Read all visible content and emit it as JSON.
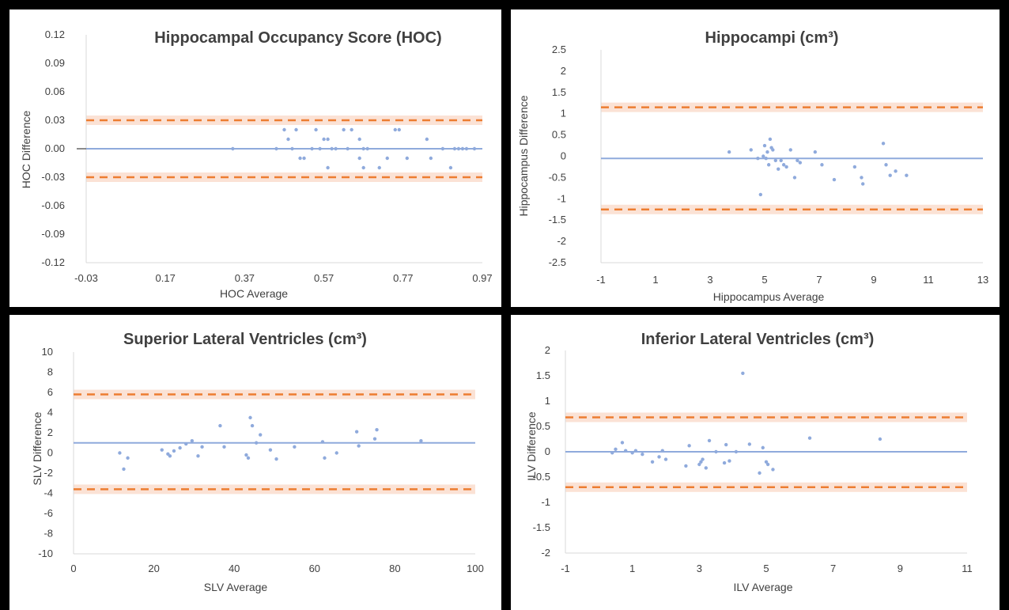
{
  "chart_data": [
    {
      "type": "scatter",
      "title": "Hippocampal Occupancy Score (HOC)",
      "xlabel": "HOC  Average",
      "ylabel": "HOC  Difference",
      "xlim": [
        -0.03,
        0.97
      ],
      "ylim": [
        -0.12,
        0.12
      ],
      "xticks": [
        "-0.03",
        "0.17",
        "0.37",
        "0.57",
        "0.77",
        "0.97"
      ],
      "yticks": [
        "0.12",
        "0.09",
        "0.06",
        "0.03",
        "0.00",
        "-0.03",
        "-0.06",
        "-0.09",
        "-0.12"
      ],
      "mean_difference": 0.0,
      "limits_of_agreement": [
        0.03,
        -0.03
      ],
      "series": [
        {
          "x": [
            0.34,
            0.45,
            0.47,
            0.48,
            0.49,
            0.5,
            0.51,
            0.52,
            0.54,
            0.55,
            0.56,
            0.57,
            0.58,
            0.58,
            0.59,
            0.6,
            0.62,
            0.63,
            0.64,
            0.66,
            0.66,
            0.67,
            0.67,
            0.68,
            0.71,
            0.73,
            0.75,
            0.76,
            0.78,
            0.83,
            0.84,
            0.87,
            0.89,
            0.9,
            0.91,
            0.92,
            0.93,
            0.95
          ],
          "y": [
            0.0,
            0.0,
            0.02,
            0.01,
            0.0,
            0.02,
            -0.01,
            -0.01,
            0.0,
            0.02,
            0.0,
            0.01,
            0.01,
            -0.02,
            0.0,
            0.0,
            0.02,
            0.0,
            0.02,
            0.01,
            -0.01,
            0.0,
            -0.02,
            0.0,
            -0.02,
            -0.01,
            0.02,
            0.02,
            -0.01,
            0.01,
            -0.01,
            0.0,
            -0.02,
            0.0,
            0.0,
            0.0,
            0.0,
            0.0
          ]
        }
      ],
      "colors": {
        "mean": "#8faadc",
        "loa": "#ed7d31",
        "loa_band": "#fbe2d5",
        "points": "#8faadc"
      }
    },
    {
      "type": "scatter",
      "title": "Hippocampi (cm³)",
      "xlabel": "Hippocampus  Average",
      "ylabel": "Hippocampus  Difference",
      "xlim": [
        -1,
        13
      ],
      "ylim": [
        -2.5,
        2.5
      ],
      "xticks": [
        "-1",
        "1",
        "3",
        "5",
        "7",
        "9",
        "11",
        "13"
      ],
      "yticks": [
        "2.5",
        "2",
        "1.5",
        "1",
        "0.5",
        "0",
        "-0.5",
        "-1",
        "-1.5",
        "-2",
        "-2.5"
      ],
      "mean_difference": -0.05,
      "limits_of_agreement": [
        1.15,
        -1.25
      ],
      "series": [
        {
          "x": [
            3.7,
            4.5,
            4.75,
            4.85,
            4.95,
            5.0,
            5.05,
            5.1,
            5.15,
            5.2,
            5.25,
            5.3,
            5.4,
            5.5,
            5.6,
            5.7,
            5.8,
            5.95,
            6.1,
            6.2,
            6.3,
            6.85,
            7.1,
            7.55,
            8.3,
            8.55,
            8.6,
            9.35,
            9.45,
            9.6,
            9.8,
            10.2
          ],
          "y": [
            0.1,
            0.15,
            -0.05,
            -0.9,
            0.0,
            0.25,
            -0.05,
            0.1,
            -0.2,
            0.4,
            0.2,
            0.15,
            -0.1,
            -0.3,
            -0.1,
            -0.2,
            -0.25,
            0.15,
            -0.5,
            -0.1,
            -0.15,
            0.1,
            -0.2,
            -0.55,
            -0.25,
            -0.5,
            -0.65,
            0.3,
            -0.2,
            -0.45,
            -0.35,
            -0.45
          ]
        }
      ],
      "colors": {
        "mean": "#8faadc",
        "loa": "#ed7d31",
        "loa_band": "#fbe2d5",
        "points": "#8faadc"
      }
    },
    {
      "type": "scatter",
      "title": "Superior Lateral Ventricles (cm³)",
      "xlabel": "SLV Average",
      "ylabel": "SLV Difference",
      "xlim": [
        0,
        100
      ],
      "ylim": [
        -10,
        10
      ],
      "xticks": [
        "0",
        "20",
        "40",
        "60",
        "80",
        "100"
      ],
      "yticks": [
        "10",
        "8",
        "6",
        "4",
        "2",
        "0",
        "-2",
        "-4",
        "-6",
        "-8",
        "-10"
      ],
      "mean_difference": 1.0,
      "limits_of_agreement": [
        5.8,
        -3.6
      ],
      "series": [
        {
          "x": [
            11.5,
            12.5,
            13.5,
            22.0,
            23.5,
            24.0,
            25.0,
            26.5,
            28.0,
            29.5,
            31.0,
            32.0,
            36.5,
            37.5,
            43.0,
            43.5,
            44.0,
            44.5,
            45.5,
            46.5,
            49.0,
            50.5,
            55.0,
            62.0,
            62.5,
            65.5,
            70.5,
            71.0,
            75.0,
            75.5,
            86.5
          ],
          "y": [
            0.0,
            -1.6,
            -0.5,
            0.3,
            -0.1,
            -0.3,
            0.2,
            0.5,
            0.9,
            1.2,
            -0.3,
            0.6,
            2.7,
            0.6,
            -0.2,
            -0.5,
            3.5,
            2.7,
            1.0,
            1.8,
            0.3,
            -0.6,
            0.6,
            1.1,
            -0.5,
            0.0,
            2.1,
            0.7,
            1.4,
            2.3,
            1.2
          ]
        }
      ],
      "colors": {
        "mean": "#8faadc",
        "loa": "#ed7d31",
        "loa_band": "#fbe2d5",
        "points": "#8faadc"
      }
    },
    {
      "type": "scatter",
      "title": "Inferior Lateral Ventricles (cm³)",
      "xlabel": "ILV Average",
      "ylabel": "ILV Difference",
      "xlim": [
        -1,
        11
      ],
      "ylim": [
        -2,
        2
      ],
      "xticks": [
        "-1",
        "1",
        "3",
        "5",
        "7",
        "9",
        "11"
      ],
      "yticks": [
        "2",
        "1.5",
        "1",
        "0.5",
        "0",
        "-0.5",
        "-1",
        "-1.5",
        "-2"
      ],
      "mean_difference": 0.0,
      "limits_of_agreement": [
        0.68,
        -0.7
      ],
      "series": [
        {
          "x": [
            0.4,
            0.5,
            0.7,
            0.8,
            1.0,
            1.1,
            1.3,
            1.6,
            1.8,
            1.9,
            2.0,
            2.6,
            2.7,
            3.0,
            3.05,
            3.1,
            3.2,
            3.3,
            3.5,
            3.75,
            3.8,
            3.9,
            4.1,
            4.3,
            4.5,
            4.8,
            4.9,
            5.0,
            5.05,
            5.2,
            6.3,
            8.4
          ],
          "y": [
            -0.02,
            0.05,
            0.18,
            0.02,
            -0.02,
            0.02,
            -0.05,
            -0.2,
            -0.1,
            0.02,
            -0.15,
            -0.28,
            0.12,
            -0.25,
            -0.2,
            -0.15,
            -0.32,
            0.22,
            0.0,
            -0.22,
            0.14,
            -0.18,
            0.0,
            1.55,
            0.15,
            -0.42,
            0.08,
            -0.2,
            -0.25,
            -0.35,
            0.27,
            0.25
          ]
        }
      ],
      "colors": {
        "mean": "#8faadc",
        "loa": "#ed7d31",
        "loa_band": "#fbe2d5",
        "points": "#8faadc"
      }
    }
  ]
}
